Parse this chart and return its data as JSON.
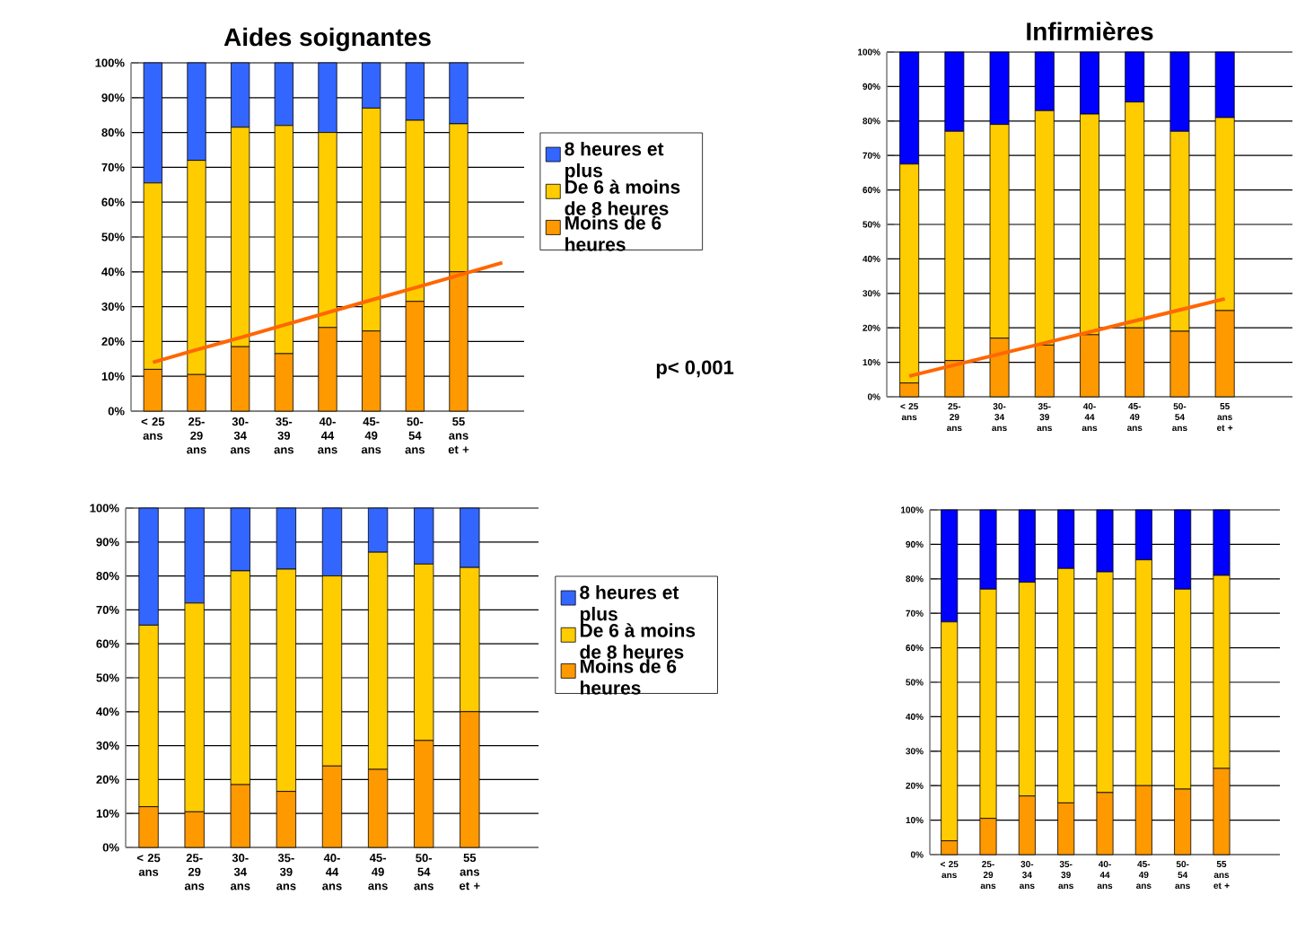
{
  "chart_data": [
    {
      "type": "bar",
      "title": "Aides soignantes",
      "stacked": true,
      "grid": "y",
      "legend": "right",
      "categories": [
        "< 25 ans",
        "25- 29 ans",
        "30- 34 ans",
        "35- 39 ans",
        "40- 44 ans",
        "45- 49 ans",
        "50- 54 ans",
        "55 ans et +",
        null
      ],
      "series": [
        {
          "name": "Moins de 6 heures",
          "color": "#ff9900",
          "values": [
            12,
            10.5,
            18.5,
            16.5,
            24,
            23,
            31.5,
            40,
            null
          ]
        },
        {
          "name": "De 6 à moins de 8 heures",
          "color": "#ffcc00",
          "values": [
            53.5,
            61.5,
            63,
            65.5,
            56,
            64,
            52,
            42.5,
            null
          ]
        },
        {
          "name": "8 heures et plus",
          "color": "#3366ff",
          "values": [
            34.5,
            28,
            18.5,
            18,
            20,
            13,
            16.5,
            17.5,
            null
          ]
        },
        {
          "type": "line",
          "color": "#ff6600",
          "values": [
            14,
            17.6,
            21.1,
            24.7,
            28.3,
            31.9,
            35.4,
            39,
            42.6
          ]
        }
      ],
      "ylim": [
        0,
        100
      ],
      "yticks": [
        {
          "value": 0,
          "label": "0%"
        },
        {
          "value": 10,
          "label": "10%"
        },
        {
          "value": 20,
          "label": "20%"
        },
        {
          "value": 30,
          "label": "30%"
        },
        {
          "value": 40,
          "label": "40%"
        },
        {
          "value": 50,
          "label": "50%"
        },
        {
          "value": 60,
          "label": "60%"
        },
        {
          "value": 70,
          "label": "70%"
        },
        {
          "value": 80,
          "label": "80%"
        },
        {
          "value": 90,
          "label": "90%"
        },
        {
          "value": 100,
          "label": "100%"
        }
      ],
      "annotations": [
        "p< 0,001"
      ]
    },
    {
      "type": "bar",
      "title": "Infirmières",
      "stacked": true,
      "grid": "y",
      "categories": [
        "< 25 ans",
        "25- 29 ans",
        "30- 34 ans",
        "35- 39 ans",
        "40- 44 ans",
        "45- 49 ans",
        "50- 54 ans",
        "55 ans et +",
        null
      ],
      "series": [
        {
          "color": "#ff9900",
          "values": [
            4,
            10.5,
            17,
            15,
            18,
            20,
            19,
            25,
            null
          ]
        },
        {
          "color": "#ffcc00",
          "values": [
            63.5,
            66.5,
            62,
            68,
            64,
            65.5,
            58,
            56,
            null
          ]
        },
        {
          "color": "#0000ff",
          "values": [
            32.5,
            23,
            21,
            17,
            18,
            14.5,
            23,
            19,
            null
          ]
        },
        {
          "type": "line",
          "color": "#ff6600",
          "values": [
            6,
            9.2,
            12.4,
            15.6,
            18.8,
            22,
            25.2,
            28.4,
            null
          ]
        }
      ],
      "ylim": [
        0,
        100
      ],
      "yticks": [
        {
          "value": 0,
          "label": "0%"
        },
        {
          "value": 10,
          "label": "10%"
        },
        {
          "value": 20,
          "label": "20%"
        },
        {
          "value": 30,
          "label": "30%"
        },
        {
          "value": 40,
          "label": "40%"
        },
        {
          "value": 50,
          "label": "50%"
        },
        {
          "value": 60,
          "label": "60%"
        },
        {
          "value": 70,
          "label": "70%"
        },
        {
          "value": 80,
          "label": "80%"
        },
        {
          "value": 90,
          "label": "90%"
        },
        {
          "value": 100,
          "label": "100%"
        }
      ]
    },
    {
      "type": "bar",
      "stacked": true,
      "grid": "y",
      "legend": "right",
      "categories": [
        "< 25 ans",
        "25- 29 ans",
        "30- 34 ans",
        "35- 39 ans",
        "40- 44 ans",
        "45- 49 ans",
        "50- 54 ans",
        "55 ans et +",
        null
      ],
      "series": [
        {
          "name": "Moins de 6 heures",
          "color": "#ff9900",
          "values": [
            12,
            10.5,
            18.5,
            16.5,
            24,
            23,
            31.5,
            40,
            null
          ]
        },
        {
          "name": "De 6 à moins de 8 heures",
          "color": "#ffcc00",
          "values": [
            53.5,
            61.5,
            63,
            65.5,
            56,
            64,
            52,
            42.5,
            null
          ]
        },
        {
          "name": "8 heures et plus",
          "color": "#3366ff",
          "values": [
            34.5,
            28,
            18.5,
            18,
            20,
            13,
            16.5,
            17.5,
            null
          ]
        }
      ],
      "ylim": [
        0,
        100
      ],
      "yticks": [
        {
          "value": 0,
          "label": "0%"
        },
        {
          "value": 10,
          "label": "10%"
        },
        {
          "value": 20,
          "label": "20%"
        },
        {
          "value": 30,
          "label": "30%"
        },
        {
          "value": 40,
          "label": "40%"
        },
        {
          "value": 50,
          "label": "50%"
        },
        {
          "value": 60,
          "label": "60%"
        },
        {
          "value": 70,
          "label": "70%"
        },
        {
          "value": 80,
          "label": "80%"
        },
        {
          "value": 90,
          "label": "90%"
        },
        {
          "value": 100,
          "label": "100%"
        }
      ]
    },
    {
      "type": "bar",
      "stacked": true,
      "grid": "y",
      "categories": [
        "< 25 ans",
        "25- 29 ans",
        "30- 34 ans",
        "35- 39 ans",
        "40- 44 ans",
        "45- 49 ans",
        "50- 54 ans",
        "55 ans et +",
        null
      ],
      "series": [
        {
          "color": "#ff9900",
          "values": [
            4,
            10.5,
            17,
            15,
            18,
            20,
            19,
            25,
            null
          ]
        },
        {
          "color": "#ffcc00",
          "values": [
            63.5,
            66.5,
            62,
            68,
            64,
            65.5,
            58,
            56,
            null
          ]
        },
        {
          "color": "#0000ff",
          "values": [
            32.5,
            23,
            21,
            17,
            18,
            14.5,
            23,
            19,
            null
          ]
        }
      ],
      "ylim": [
        0,
        100
      ],
      "yticks": [
        {
          "value": 0,
          "label": "0%"
        },
        {
          "value": 10,
          "label": "10%"
        },
        {
          "value": 20,
          "label": "20%"
        },
        {
          "value": 30,
          "label": "30%"
        },
        {
          "value": 40,
          "label": "40%"
        },
        {
          "value": 50,
          "label": "50%"
        },
        {
          "value": 60,
          "label": "60%"
        },
        {
          "value": 70,
          "label": "70%"
        },
        {
          "value": 80,
          "label": "80%"
        },
        {
          "value": 90,
          "label": "90%"
        },
        {
          "value": 100,
          "label": "100%"
        }
      ]
    }
  ]
}
